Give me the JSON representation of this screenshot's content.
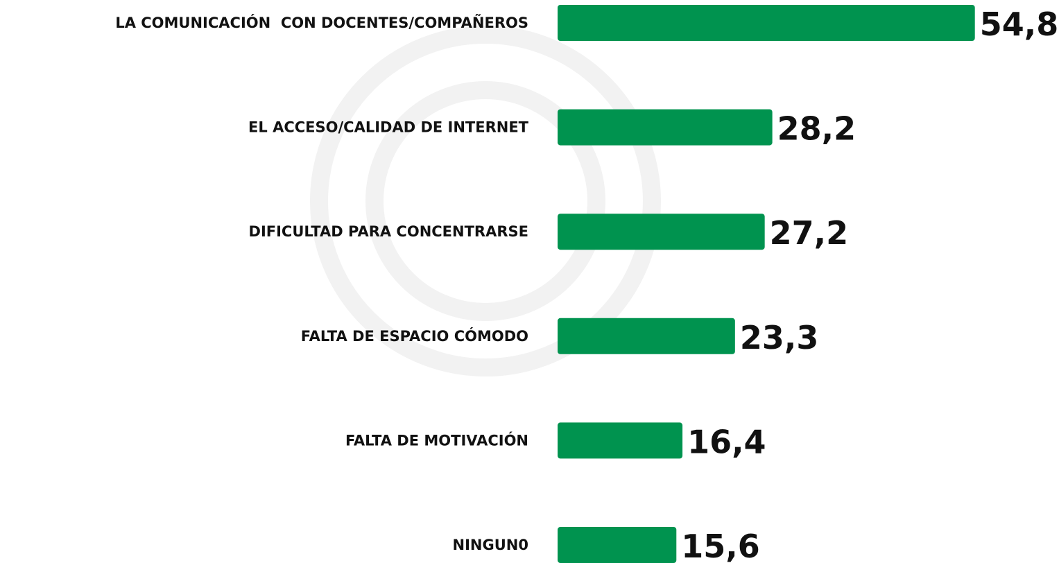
{
  "chart_data": {
    "type": "bar",
    "orientation": "horizontal",
    "color": "#00934f",
    "categories": [
      "LA COMUNICACIÓN  CON DOCENTES/COMPAÑEROS",
      "EL ACCESO/CALIDAD DE INTERNET",
      "DIFICULTAD PARA CONCENTRARSE",
      "FALTA DE ESPACIO CÓMODO",
      "FALTA DE MOTIVACIÓN",
      "NINGUN0"
    ],
    "values": [
      54.8,
      28.2,
      27.2,
      23.3,
      16.4,
      15.6
    ],
    "value_labels": [
      "54,8",
      "28,2",
      "27,2",
      "23,3",
      "16,4",
      "15,6"
    ]
  }
}
